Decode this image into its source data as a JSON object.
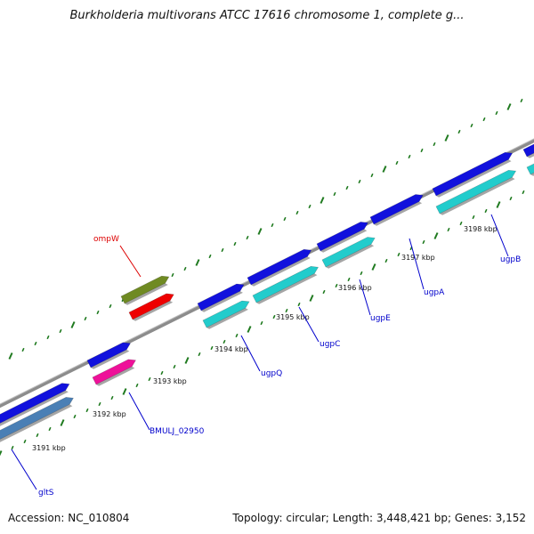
{
  "title": "Burkholderia multivorans ATCC 17616 chromosome 1, complete g...",
  "footer": {
    "accession": "Accession: NC_010804",
    "topology": "Topology: circular; Length: 3,448,421 bp; Genes: 3,152"
  },
  "colors": {
    "backbone": "#8c8c8c",
    "tick": "#1f7a1f",
    "label_blue": "#0000cc",
    "label_red": "#dd0000",
    "gene_blue": "#1111dd",
    "gene_cyan": "#22cccc",
    "gene_steel": "#4a7fb5",
    "gene_magenta": "#ee1199",
    "gene_olive": "#6f8a22",
    "gene_red": "#ee0000"
  },
  "kbp_ticks": [
    "3191 kbp",
    "3192 kbp",
    "3193 kbp",
    "3194 kbp",
    "3195 kbp",
    "3196 kbp",
    "3197 kbp",
    "3198 kbp"
  ],
  "gene_labels": [
    {
      "name": "ompW",
      "color": "red"
    },
    {
      "name": "gltS",
      "color": "blue"
    },
    {
      "name": "BMULJ_02950",
      "color": "blue"
    },
    {
      "name": "ugpQ",
      "color": "blue"
    },
    {
      "name": "ugpC",
      "color": "blue"
    },
    {
      "name": "ugpE",
      "color": "blue"
    },
    {
      "name": "ugpA",
      "color": "blue"
    },
    {
      "name": "ugpB",
      "color": "blue"
    }
  ]
}
